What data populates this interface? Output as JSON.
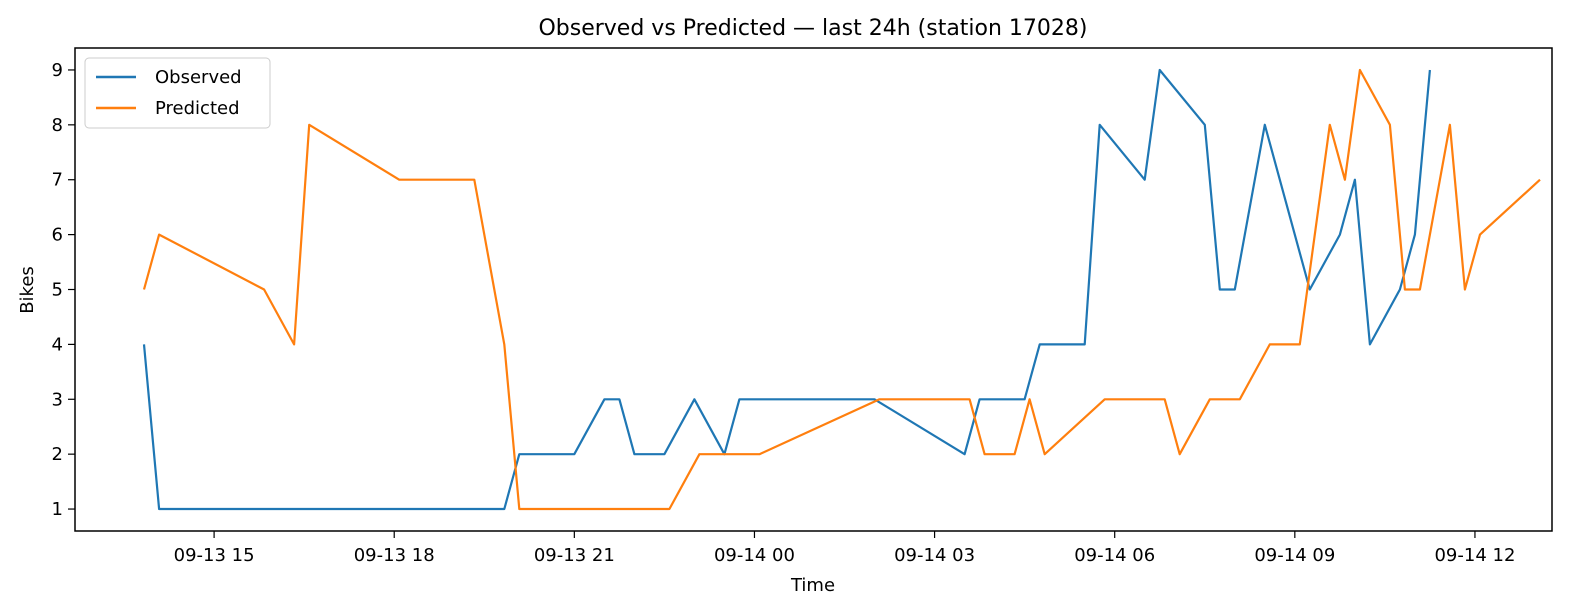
{
  "chart_data": {
    "type": "line",
    "title": "Observed vs Predicted — last 24h (station 17028)",
    "xlabel": "Time",
    "ylabel": "Bikes",
    "xlim": [
      "2025-09-13 12:41",
      "2025-09-14 13:17"
    ],
    "ylim": [
      0.6,
      9.4
    ],
    "x_ticks": [
      {
        "t": "2025-09-13 15:00",
        "label": "09-13 15"
      },
      {
        "t": "2025-09-13 18:00",
        "label": "09-13 18"
      },
      {
        "t": "2025-09-13 21:00",
        "label": "09-13 21"
      },
      {
        "t": "2025-09-14 00:00",
        "label": "09-14 00"
      },
      {
        "t": "2025-09-14 03:00",
        "label": "09-14 03"
      },
      {
        "t": "2025-09-14 06:00",
        "label": "09-14 06"
      },
      {
        "t": "2025-09-14 09:00",
        "label": "09-14 09"
      },
      {
        "t": "2025-09-14 12:00",
        "label": "09-14 12"
      }
    ],
    "y_ticks": [
      1,
      2,
      3,
      4,
      5,
      6,
      7,
      8,
      9
    ],
    "grid": false,
    "legend": "upper-left",
    "series": [
      {
        "name": "Observed",
        "color": "#1f77b4",
        "points": [
          [
            "2025-09-13 13:50",
            4
          ],
          [
            "2025-09-13 14:05",
            1
          ],
          [
            "2025-09-13 19:50",
            1
          ],
          [
            "2025-09-13 20:05",
            2
          ],
          [
            "2025-09-13 21:00",
            2
          ],
          [
            "2025-09-13 21:30",
            3
          ],
          [
            "2025-09-13 21:45",
            3
          ],
          [
            "2025-09-13 22:00",
            2
          ],
          [
            "2025-09-13 22:30",
            2
          ],
          [
            "2025-09-13 23:00",
            3
          ],
          [
            "2025-09-13 23:30",
            2
          ],
          [
            "2025-09-13 23:45",
            3
          ],
          [
            "2025-09-14 02:00",
            3
          ],
          [
            "2025-09-14 03:30",
            2
          ],
          [
            "2025-09-14 03:45",
            3
          ],
          [
            "2025-09-14 04:30",
            3
          ],
          [
            "2025-09-14 04:45",
            4
          ],
          [
            "2025-09-14 05:30",
            4
          ],
          [
            "2025-09-14 05:45",
            8
          ],
          [
            "2025-09-14 06:30",
            7
          ],
          [
            "2025-09-14 06:45",
            9
          ],
          [
            "2025-09-14 07:30",
            8
          ],
          [
            "2025-09-14 07:45",
            5
          ],
          [
            "2025-09-14 08:00",
            5
          ],
          [
            "2025-09-14 08:30",
            8
          ],
          [
            "2025-09-14 09:15",
            5
          ],
          [
            "2025-09-14 09:45",
            6
          ],
          [
            "2025-09-14 10:00",
            7
          ],
          [
            "2025-09-14 10:15",
            4
          ],
          [
            "2025-09-14 10:45",
            5
          ],
          [
            "2025-09-14 11:00",
            6
          ],
          [
            "2025-09-14 11:15",
            9
          ]
        ]
      },
      {
        "name": "Predicted",
        "color": "#ff7f0e",
        "points": [
          [
            "2025-09-13 13:50",
            5
          ],
          [
            "2025-09-13 14:05",
            6
          ],
          [
            "2025-09-13 15:50",
            5
          ],
          [
            "2025-09-13 16:20",
            4
          ],
          [
            "2025-09-13 16:35",
            8
          ],
          [
            "2025-09-13 18:05",
            7
          ],
          [
            "2025-09-13 19:20",
            7
          ],
          [
            "2025-09-13 19:50",
            4
          ],
          [
            "2025-09-13 20:05",
            1
          ],
          [
            "2025-09-13 22:35",
            1
          ],
          [
            "2025-09-13 23:05",
            2
          ],
          [
            "2025-09-14 00:05",
            2
          ],
          [
            "2025-09-14 02:05",
            3
          ],
          [
            "2025-09-14 03:35",
            3
          ],
          [
            "2025-09-14 03:50",
            2
          ],
          [
            "2025-09-14 04:20",
            2
          ],
          [
            "2025-09-14 04:35",
            3
          ],
          [
            "2025-09-14 04:50",
            2
          ],
          [
            "2025-09-14 05:50",
            3
          ],
          [
            "2025-09-14 06:50",
            3
          ],
          [
            "2025-09-14 07:05",
            2
          ],
          [
            "2025-09-14 07:35",
            3
          ],
          [
            "2025-09-14 08:05",
            3
          ],
          [
            "2025-09-14 08:35",
            4
          ],
          [
            "2025-09-14 09:05",
            4
          ],
          [
            "2025-09-14 09:35",
            8
          ],
          [
            "2025-09-14 09:50",
            7
          ],
          [
            "2025-09-14 10:05",
            9
          ],
          [
            "2025-09-14 10:35",
            8
          ],
          [
            "2025-09-14 10:50",
            5
          ],
          [
            "2025-09-14 11:05",
            5
          ],
          [
            "2025-09-14 11:35",
            8
          ],
          [
            "2025-09-14 11:50",
            5
          ],
          [
            "2025-09-14 12:05",
            6
          ],
          [
            "2025-09-14 13:05",
            7
          ]
        ]
      }
    ]
  }
}
